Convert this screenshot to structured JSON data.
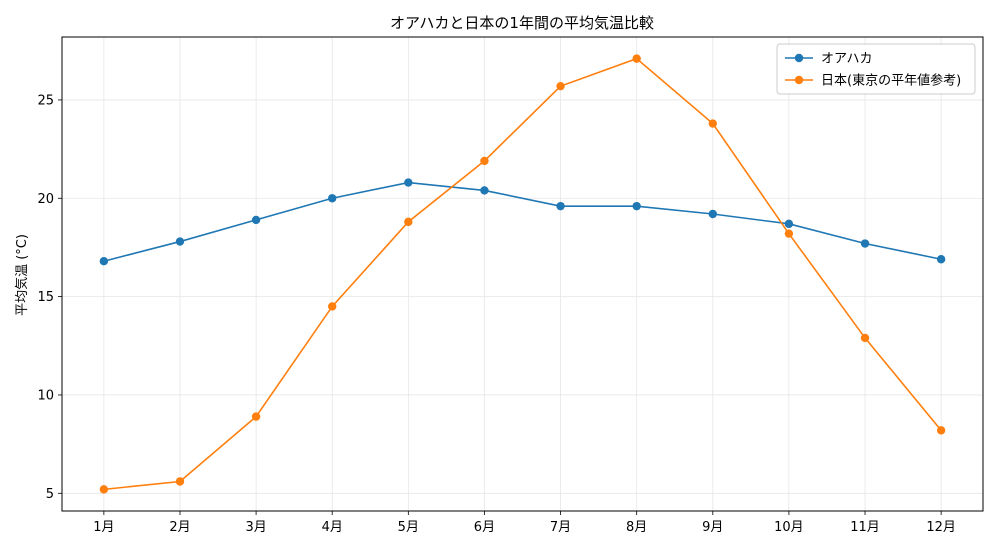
{
  "chart_data": {
    "type": "line",
    "title": "オアハカと日本の1年間の平均気温比較",
    "xlabel": "",
    "ylabel": "平均気温 (°C)",
    "categories": [
      "1月",
      "2月",
      "3月",
      "4月",
      "5月",
      "6月",
      "7月",
      "8月",
      "9月",
      "10月",
      "11月",
      "12月"
    ],
    "series": [
      {
        "name": "オアハカ",
        "values": [
          16.8,
          17.8,
          18.9,
          20.0,
          20.8,
          20.4,
          19.6,
          19.6,
          19.2,
          18.7,
          17.7,
          16.9
        ],
        "color": "#1f77b4"
      },
      {
        "name": "日本(東京の平年値参考)",
        "values": [
          5.2,
          5.6,
          8.9,
          14.5,
          18.8,
          21.9,
          25.7,
          27.1,
          23.8,
          18.2,
          12.9,
          8.2
        ],
        "color": "#ff7f0e"
      }
    ],
    "ylim": [
      4.1,
      28.2
    ],
    "yticks": [
      5,
      10,
      15,
      20,
      25
    ],
    "grid": true,
    "legend_position": "top-right"
  }
}
